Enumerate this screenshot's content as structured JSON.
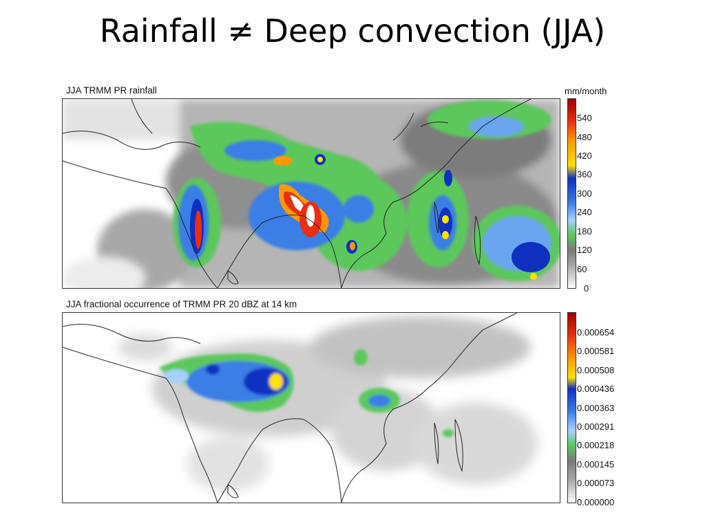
{
  "slide": {
    "title": "Rainfall ≠ Deep convection (JJA)"
  },
  "panels": [
    {
      "title": "JJA TRMM PR rainfall",
      "units": "mm/month",
      "colorbar_ticks": [
        "540",
        "480",
        "420",
        "360",
        "300",
        "240",
        "180",
        "120",
        "60",
        "0"
      ]
    },
    {
      "title": "JJA fractional occurrence of TRMM PR 20 dBZ at 14 km",
      "units": "",
      "colorbar_ticks": [
        "0.000654",
        "0.000581",
        "0.000508",
        "0.000436",
        "0.000363",
        "0.000291",
        "0.000218",
        "0.000145",
        "0.000073",
        "0.000000"
      ]
    }
  ],
  "colormap": [
    "#ffffff",
    "#d9d9d9",
    "#a8a8a8",
    "#7a7a7a",
    "#5cc85c",
    "#a8d0ff",
    "#3a7ee6",
    "#1030c0",
    "#ffe000",
    "#ff9900",
    "#e83010",
    "#a00000"
  ],
  "map_colors": {
    "coast": "#222222",
    "ocean": "#ffffff"
  }
}
